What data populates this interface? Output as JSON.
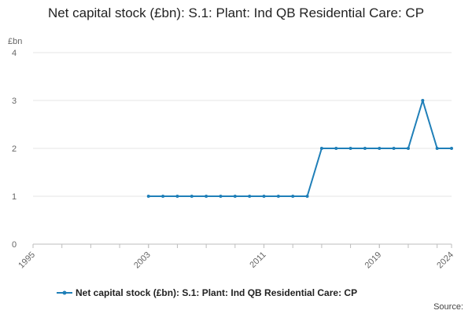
{
  "chart_data": {
    "type": "line",
    "title": "Net capital stock (£bn): S.1: Plant: Ind QB Residential Care: CP",
    "ylabel": "£bn",
    "xlabel": "",
    "ylim": [
      0,
      4
    ],
    "yticks": [
      "0",
      "1",
      "2",
      "3",
      "4"
    ],
    "xlim": [
      1995,
      2024
    ],
    "xticks": [
      "1995",
      "2003",
      "2011",
      "2019",
      "2024"
    ],
    "grid": true,
    "legend_position": "bottom",
    "series": [
      {
        "name": "Net capital stock (£bn): S.1: Plant: Ind QB Residential Care: CP",
        "color": "#1f7fb8",
        "x": [
          2003,
          2004,
          2005,
          2006,
          2007,
          2008,
          2009,
          2010,
          2011,
          2012,
          2013,
          2014,
          2015,
          2016,
          2017,
          2018,
          2019,
          2020,
          2021,
          2022,
          2023,
          2024
        ],
        "values": [
          1,
          1,
          1,
          1,
          1,
          1,
          1,
          1,
          1,
          1,
          1,
          1,
          2,
          2,
          2,
          2,
          2,
          2,
          2,
          3,
          2,
          2
        ]
      }
    ],
    "source": "Source:"
  }
}
